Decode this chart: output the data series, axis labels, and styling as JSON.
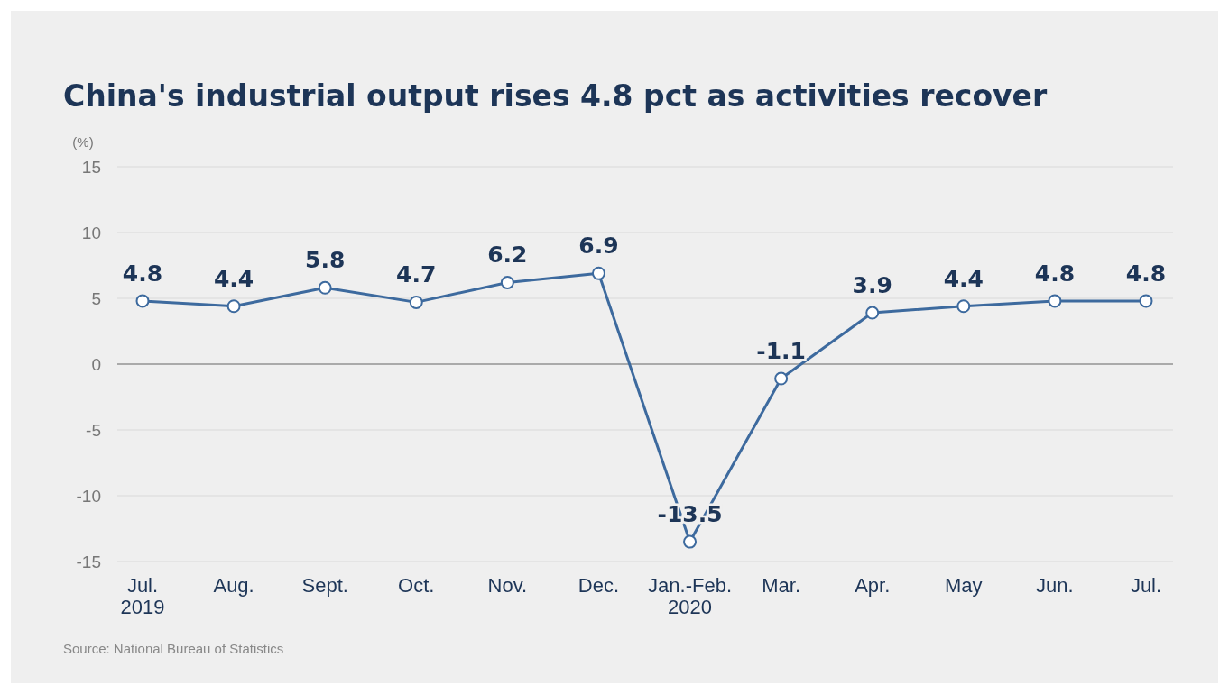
{
  "chart_data": {
    "type": "line",
    "title": "China's industrial output rises 4.8 pct as activities recover",
    "ylabel": "(%)",
    "categories": [
      "Jul.\n2019",
      "Aug.",
      "Sept.",
      "Oct.",
      "Nov.",
      "Dec.",
      "Jan.-Feb.\n2020",
      "Mar.",
      "Apr.",
      "May",
      "Jun.",
      "Jul."
    ],
    "series": [
      {
        "color": "#3d6a9e",
        "values": [
          4.8,
          4.4,
          5.8,
          4.7,
          6.2,
          6.9,
          -13.5,
          -1.1,
          3.9,
          4.4,
          4.8,
          4.8
        ]
      }
    ],
    "ylim": [
      -15,
      15
    ],
    "yticks": [
      -15,
      -10,
      -5,
      0,
      5,
      10,
      15
    ],
    "grid": "y",
    "marker": "circle",
    "line_style": "solid",
    "data_labels": true,
    "annotations": [
      "Source: National Bureau of Statistics"
    ]
  }
}
